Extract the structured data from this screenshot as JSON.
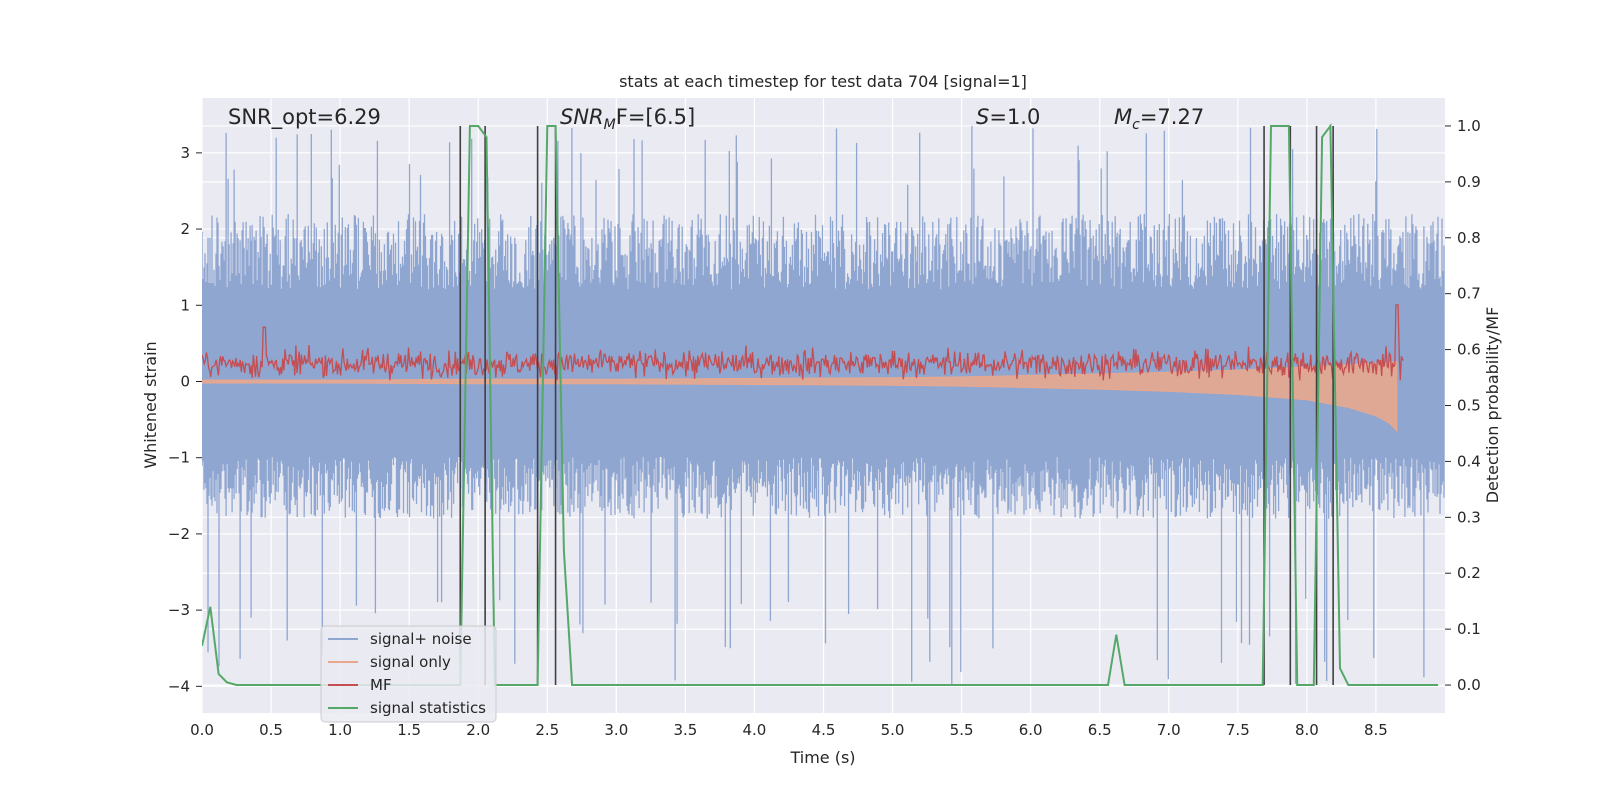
{
  "chart_data": {
    "type": "line",
    "title": "stats at each timestep for test data 704 [signal=1]",
    "xlabel": "Time (s)",
    "ylabel_left": "Whitened strain",
    "ylabel_right": "Detection probability/MF",
    "xlim": [
      0.0,
      9.0
    ],
    "ylim_left": [
      -4.35,
      3.72
    ],
    "ylim_right": [
      -0.05,
      1.05
    ],
    "xticks": [
      "0.0",
      "0.5",
      "1.0",
      "1.5",
      "2.0",
      "2.5",
      "3.0",
      "3.5",
      "4.0",
      "4.5",
      "5.0",
      "5.5",
      "6.0",
      "6.5",
      "7.0",
      "7.5",
      "8.0",
      "8.5"
    ],
    "yticks_left": [
      "3",
      "2",
      "1",
      "0",
      "−1",
      "−2",
      "−3",
      "−4"
    ],
    "yticks_right": [
      "1.0",
      "0.9",
      "0.8",
      "0.7",
      "0.6",
      "0.5",
      "0.4",
      "0.3",
      "0.2",
      "0.1",
      "0.0"
    ],
    "grid": true,
    "legend_position": "lower-left",
    "annotations": {
      "snr_opt": "SNR_opt=6.29",
      "snr_mf_main": "SNR",
      "snr_mf_sub": "M",
      "snr_mf_tail": "F=[6.5]",
      "s_main": "S",
      "s_tail": "=1.0",
      "mc_main": "M",
      "mc_sub": "c",
      "mc_tail": "=7.27"
    },
    "vertical_lines_x": [
      1.87,
      2.05,
      2.43,
      2.56,
      7.69,
      7.88,
      8.07,
      8.19
    ],
    "series": [
      {
        "name": "signal+ noise",
        "color": "#8fa6d1",
        "axis": "left",
        "description_values": {
          "mean": 0.0,
          "typical_envelope": [
            -1.8,
            2.2
          ],
          "extremes": [
            -4.0,
            3.4
          ]
        }
      },
      {
        "name": "signal only",
        "color": "#e8a88e",
        "axis": "left",
        "envelope": {
          "x": [
            0.0,
            1.0,
            2.0,
            3.0,
            4.0,
            5.0,
            5.5,
            6.0,
            6.5,
            7.0,
            7.5,
            8.0,
            8.3,
            8.5,
            8.6,
            8.65
          ],
          "upper": [
            0.02,
            0.02,
            0.03,
            0.03,
            0.04,
            0.05,
            0.06,
            0.08,
            0.1,
            0.12,
            0.15,
            0.19,
            0.22,
            0.24,
            0.25,
            0.26
          ],
          "lower": [
            -0.02,
            -0.02,
            -0.03,
            -0.03,
            -0.04,
            -0.05,
            -0.06,
            -0.08,
            -0.1,
            -0.13,
            -0.17,
            -0.24,
            -0.34,
            -0.45,
            -0.55,
            -0.65
          ]
        }
      },
      {
        "name": "MF",
        "color": "#c44e52",
        "axis": "right",
        "description_values": {
          "band": [
            0.55,
            0.6
          ],
          "peaks": [
            {
              "x": 0.45,
              "y": 0.64
            },
            {
              "x": 8.65,
              "y": 0.68
            }
          ]
        }
      },
      {
        "name": "signal statistics",
        "color": "#55a868",
        "axis": "right",
        "x": [
          0.0,
          0.06,
          0.12,
          0.18,
          0.25,
          0.31,
          1.87,
          1.94,
          2.0,
          2.06,
          2.12,
          2.37,
          2.43,
          2.5,
          2.56,
          2.62,
          2.68,
          6.56,
          6.62,
          6.68,
          7.68,
          7.74,
          7.81,
          7.87,
          7.93,
          7.99,
          8.05,
          8.11,
          8.17,
          8.24,
          8.3,
          8.36,
          8.95
        ],
        "y": [
          0.07,
          0.14,
          0.02,
          0.005,
          0.0,
          0.0,
          0.0,
          1.0,
          1.0,
          0.98,
          0.0,
          0.0,
          0.0,
          1.0,
          1.0,
          0.24,
          0.0,
          0.0,
          0.09,
          0.0,
          0.0,
          1.0,
          1.0,
          1.0,
          0.0,
          0.0,
          0.0,
          0.98,
          1.0,
          0.03,
          0.0,
          0.0,
          0.0
        ]
      }
    ]
  }
}
